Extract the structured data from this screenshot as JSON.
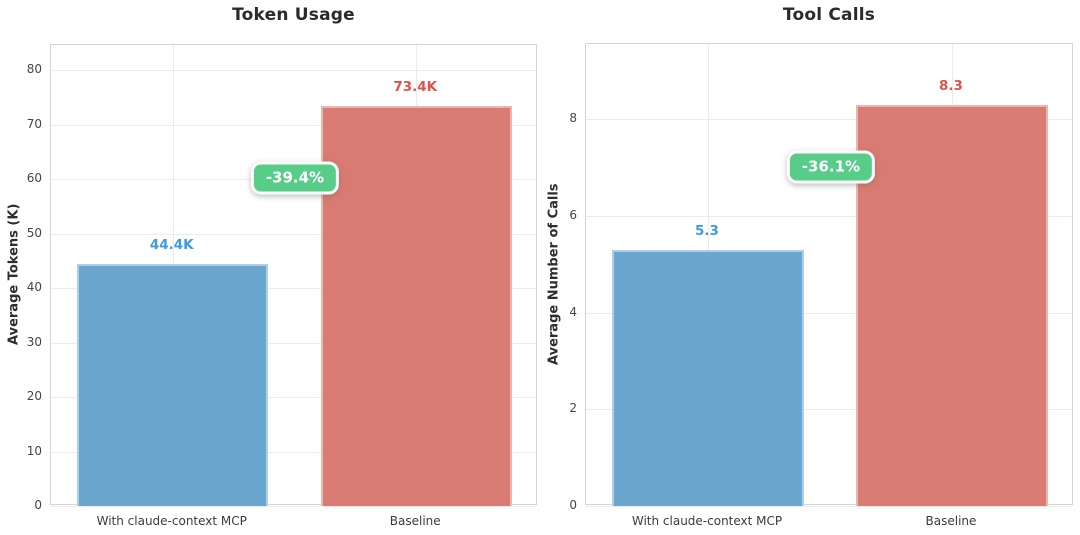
{
  "figure": {
    "background": "#ffffff"
  },
  "palette": {
    "mcp_bar": "#6ba6cf",
    "baseline_bar": "#d97b72",
    "mcp_label": "#3d9be0",
    "baseline_label": "#e2514a",
    "badge_bg": "#58cd88",
    "badge_text": "#ffffff"
  },
  "chart_data": [
    {
      "type": "bar",
      "title": "Token Usage",
      "xlabel": "",
      "ylabel": "Average Tokens (K)",
      "categories": [
        "With claude-context MCP",
        "Baseline"
      ],
      "values": [
        44.4,
        73.4
      ],
      "bar_labels": [
        "44.4K",
        "73.4K"
      ],
      "bar_colors": [
        "#6ba6cf",
        "#d97b72"
      ],
      "bar_label_colors": [
        "#3d9be0",
        "#e2514a"
      ],
      "ylim": [
        0,
        84.6
      ],
      "yticks": [
        0,
        10,
        20,
        30,
        40,
        50,
        60,
        70,
        80
      ],
      "grid": true,
      "legend": "none",
      "annotation": {
        "label": "-39.4%",
        "bg": "#58cd88",
        "text_color": "#ffffff",
        "x_frac": 0.503,
        "y_value": 60.0
      }
    },
    {
      "type": "bar",
      "title": "Tool Calls",
      "xlabel": "",
      "ylabel": "Average Number of Calls",
      "categories": [
        "With claude-context MCP",
        "Baseline"
      ],
      "values": [
        5.3,
        8.3
      ],
      "bar_labels": [
        "5.3",
        "8.3"
      ],
      "bar_colors": [
        "#6ba6cf",
        "#d97b72"
      ],
      "bar_label_colors": [
        "#3d9be0",
        "#e2514a"
      ],
      "ylim": [
        0,
        9.56
      ],
      "yticks": [
        0,
        2,
        4,
        6,
        8
      ],
      "grid": true,
      "legend": "none",
      "annotation": {
        "label": "-36.1%",
        "bg": "#58cd88",
        "text_color": "#ffffff",
        "x_frac": 0.504,
        "y_value": 7.0
      }
    }
  ]
}
